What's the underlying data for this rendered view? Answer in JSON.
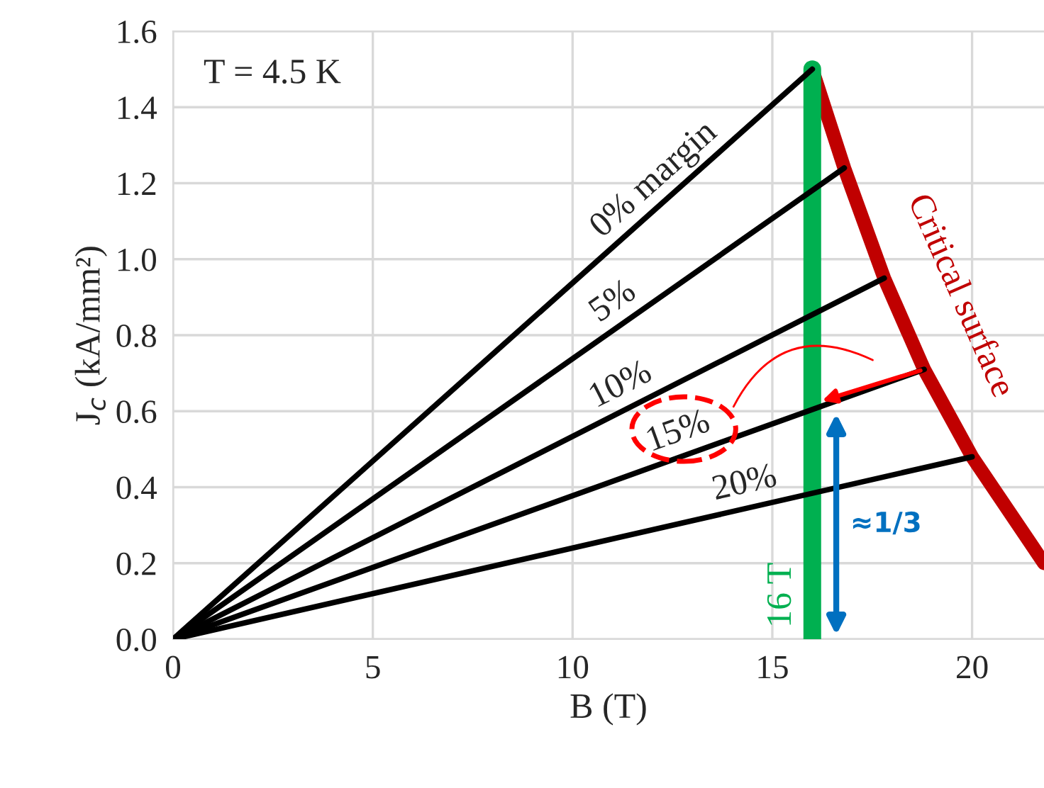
{
  "chart_data": {
    "type": "line",
    "xlabel": "B (T)",
    "ylabel": "J$_{c}$ (kA/mm²)",
    "xlim": [
      0,
      21.8
    ],
    "ylim": [
      0,
      1.6
    ],
    "xticks": [
      0,
      5,
      10,
      15,
      20
    ],
    "yticks": [
      {
        "value": 0,
        "label": "0.0"
      },
      {
        "value": 0.2,
        "label": "0.2"
      },
      {
        "value": 0.4,
        "label": "0.4"
      },
      {
        "value": 0.6,
        "label": "0.6"
      },
      {
        "value": 0.8,
        "label": "0.8"
      },
      {
        "value": 1.0,
        "label": "1.0"
      },
      {
        "value": 1.2,
        "label": "1.2"
      },
      {
        "value": 1.4,
        "label": "1.4"
      },
      {
        "value": 1.6,
        "label": "1.6"
      }
    ],
    "grid": true,
    "marker": "none",
    "line_style": "solid",
    "series": [
      {
        "name": "0% margin",
        "color": "#000000",
        "x": [
          0,
          16
        ],
        "values": [
          0,
          1.5
        ]
      },
      {
        "name": "5%",
        "color": "#000000",
        "x": [
          0,
          16.8
        ],
        "values": [
          0,
          1.24
        ]
      },
      {
        "name": "10%",
        "color": "#000000",
        "x": [
          0,
          17.8
        ],
        "values": [
          0,
          0.95
        ]
      },
      {
        "name": "15%",
        "color": "#000000",
        "x": [
          0,
          18.8
        ],
        "values": [
          0,
          0.71
        ]
      },
      {
        "name": "20%",
        "color": "#000000",
        "x": [
          0,
          20
        ],
        "values": [
          0,
          0.48
        ]
      },
      {
        "name": "16 T",
        "color": "#00b050",
        "x": [
          16,
          16
        ],
        "values": [
          0,
          1.5
        ]
      },
      {
        "name": "Critical surface",
        "color": "#c00000",
        "x": [
          16,
          16.8,
          17.8,
          18.8,
          20,
          21.8
        ],
        "values": [
          1.5,
          1.24,
          0.95,
          0.71,
          0.48,
          0.2
        ]
      }
    ],
    "annotations": [
      "T = 4.5 K",
      "≈1/3"
    ]
  }
}
